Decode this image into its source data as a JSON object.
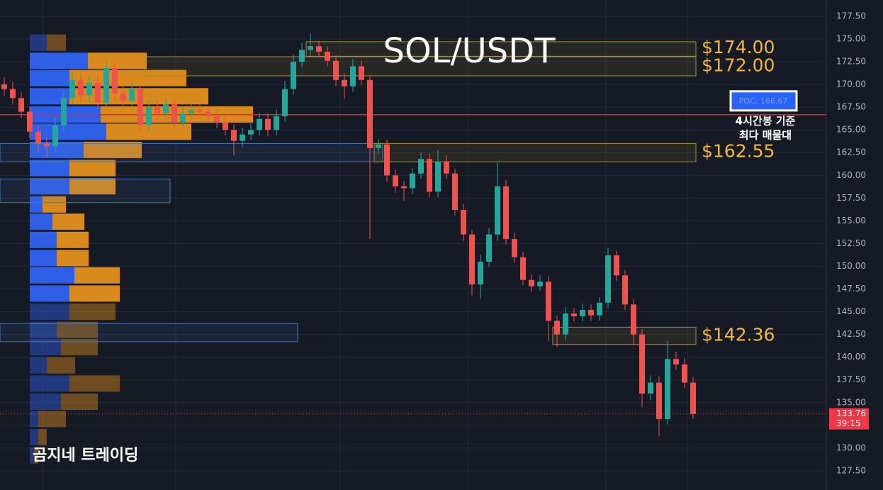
{
  "chart_data": {
    "type": "candlestick",
    "title": "SOL/USDT",
    "watermark": "곰지네 트레이딩",
    "ylim": [
      125.39,
      179.29
    ],
    "yticks": [
      {
        "value": 127.5,
        "label": "127.50"
      },
      {
        "value": 130,
        "label": "130.00"
      },
      {
        "value": 132.5,
        "label": "132.50"
      },
      {
        "value": 135,
        "label": "135.00"
      },
      {
        "value": 137.5,
        "label": "137.50"
      },
      {
        "value": 140,
        "label": "140.00"
      },
      {
        "value": 142.5,
        "label": "142.50"
      },
      {
        "value": 145,
        "label": "145.00"
      },
      {
        "value": 147.5,
        "label": "147.50"
      },
      {
        "value": 150,
        "label": "150.00"
      },
      {
        "value": 152.5,
        "label": "152.50"
      },
      {
        "value": 155,
        "label": "155.00"
      },
      {
        "value": 157.5,
        "label": "157.50"
      },
      {
        "value": 160,
        "label": "160.00"
      },
      {
        "value": 162.5,
        "label": "162.50"
      },
      {
        "value": 165,
        "label": "165.00"
      },
      {
        "value": 167.5,
        "label": "167.50"
      },
      {
        "value": 170,
        "label": "170.00"
      },
      {
        "value": 172.5,
        "label": "172.50"
      },
      {
        "value": 175,
        "label": "175.00"
      },
      {
        "value": 177.5,
        "label": "177.50"
      }
    ],
    "grid": true,
    "up_color": "#26a69a",
    "down_color": "#ef5350",
    "open": [
      170.0,
      169.5,
      168.5,
      167.0,
      164.8,
      163.5,
      163.2,
      165.5,
      168.5,
      170.5,
      168.8,
      170.2,
      168.0,
      171.8,
      169.0,
      168.2,
      169.5,
      165.5,
      167.5,
      166.8,
      167.8,
      165.8,
      166.8,
      167.2,
      167.0,
      166.5,
      165.8,
      165.0,
      163.8,
      164.5,
      165.0,
      166.2,
      165.0,
      166.5,
      169.5,
      172.5,
      173.8,
      174.2,
      173.6,
      172.6,
      170.5,
      169.8,
      172.0,
      170.5,
      163.0,
      163.4,
      160.0,
      158.8,
      158.6,
      160.2,
      161.8,
      158.2,
      161.5,
      160.2,
      156.2,
      153.5,
      148.0,
      150.5,
      153.5,
      158.8,
      153.0,
      151.0,
      148.5,
      147.8,
      148.3,
      144.0,
      142.5,
      144.8,
      144.5,
      145.2,
      144.6,
      146.0,
      151.2,
      149.0,
      145.8,
      142.5,
      136.0,
      137.2,
      133.2,
      139.8,
      139.2,
      137.2
    ],
    "high": [
      170.8,
      170.3,
      169.2,
      167.6,
      165.5,
      164.2,
      166.3,
      169.3,
      171.4,
      171.2,
      171.0,
      171.0,
      172.6,
      172.4,
      169.8,
      170.3,
      170.1,
      168.3,
      168.2,
      168.5,
      168.4,
      167.5,
      167.9,
      167.8,
      167.6,
      167.2,
      166.4,
      165.6,
      165.2,
      165.7,
      166.9,
      166.8,
      167.3,
      170.4,
      173.3,
      174.6,
      175.6,
      174.8,
      174.2,
      173.2,
      171.2,
      172.8,
      172.6,
      171.0,
      164.0,
      163.9,
      160.6,
      159.4,
      160.8,
      162.5,
      162.4,
      162.8,
      162.2,
      160.7,
      156.9,
      154.0,
      151.3,
      154.2,
      161.4,
      159.5,
      153.7,
      151.6,
      149.1,
      149.0,
      148.9,
      144.6,
      145.5,
      145.4,
      145.9,
      145.8,
      146.6,
      152.0,
      151.7,
      149.6,
      146.4,
      143.1,
      138.0,
      137.9,
      141.8,
      140.6,
      139.9,
      137.8
    ],
    "low": [
      168.8,
      167.8,
      166.3,
      164.1,
      162.6,
      162.0,
      162.6,
      164.8,
      167.8,
      168.1,
      168.0,
      167.3,
      167.4,
      168.3,
      167.5,
      167.6,
      164.8,
      164.9,
      166.1,
      166.2,
      165.1,
      165.2,
      166.2,
      166.4,
      165.9,
      165.2,
      164.4,
      162.2,
      163.1,
      163.9,
      164.4,
      164.3,
      164.4,
      165.9,
      168.9,
      171.9,
      173.2,
      173.0,
      172.0,
      169.8,
      168.4,
      169.2,
      169.9,
      153.0,
      162.3,
      159.3,
      158.1,
      157.2,
      158.0,
      159.6,
      157.6,
      157.6,
      159.6,
      155.6,
      152.8,
      146.8,
      146.4,
      149.9,
      152.8,
      152.4,
      150.4,
      147.9,
      147.2,
      147.3,
      141.8,
      141.1,
      141.9,
      143.9,
      143.9,
      144.0,
      144.0,
      145.4,
      148.4,
      145.2,
      141.3,
      134.5,
      135.3,
      131.3,
      132.6,
      138.6,
      136.6,
      133.2
    ],
    "close": [
      169.5,
      168.5,
      167.0,
      164.8,
      163.5,
      163.2,
      165.5,
      168.5,
      170.5,
      168.8,
      170.2,
      168.0,
      171.8,
      169.0,
      168.2,
      169.5,
      165.5,
      167.5,
      166.8,
      167.8,
      165.8,
      166.8,
      167.2,
      167.0,
      166.5,
      165.8,
      165.0,
      163.8,
      164.5,
      165.0,
      166.2,
      165.0,
      166.5,
      169.5,
      172.5,
      173.8,
      174.2,
      173.6,
      172.6,
      170.5,
      169.8,
      172.0,
      170.5,
      163.0,
      163.4,
      160.0,
      158.8,
      158.6,
      160.2,
      161.8,
      158.2,
      161.5,
      160.2,
      156.2,
      153.5,
      148.0,
      150.5,
      153.5,
      158.8,
      153.0,
      151.0,
      148.5,
      147.8,
      148.3,
      144.0,
      142.5,
      144.8,
      144.5,
      145.2,
      144.6,
      146.0,
      151.2,
      149.0,
      145.8,
      142.5,
      136.0,
      137.2,
      133.2,
      139.8,
      139.2,
      137.2,
      133.76
    ],
    "poc": {
      "value": 166.67,
      "label": "POC: 166.67",
      "color": "#e8262a",
      "note": [
        "4시간봉 기준",
        "최다 매물대"
      ]
    },
    "last_price": {
      "value": 133.76,
      "label": "133.76",
      "countdown": "39:15"
    },
    "zones": [
      {
        "label": "$174.00",
        "value": 174.0,
        "top": 174.7,
        "bottom": 173.1,
        "start": 36
      },
      {
        "label": "$172.00",
        "value": 172.0,
        "top": 173.05,
        "bottom": 170.95,
        "start": 17
      },
      {
        "label": "$162.55",
        "value": 162.55,
        "top": 163.5,
        "bottom": 161.5,
        "start": 44
      },
      {
        "label": "$142.36",
        "value": 142.36,
        "top": 143.3,
        "bottom": 141.4,
        "start": 65
      }
    ],
    "support_zones": [
      {
        "top": 159.6,
        "bottom": 157.0,
        "start": 0,
        "end": 20
      },
      {
        "top": 143.7,
        "bottom": 141.7,
        "start": 0,
        "end": 35
      },
      {
        "top": 163.5,
        "bottom": 161.5,
        "start": 0,
        "end": 45
      }
    ],
    "volume_profile": {
      "buy_color": "#2f5fe6",
      "sell_color": "#d98a1c",
      "value_area": [
        146.0,
        173.5
      ],
      "prices": [
        174.6,
        172.6,
        170.7,
        168.7,
        166.7,
        164.8,
        162.8,
        160.8,
        158.8,
        156.8,
        154.9,
        152.9,
        150.9,
        149.0,
        147.0,
        145.0,
        143.0,
        141.1,
        139.1,
        137.1,
        135.1,
        133.2,
        131.2,
        129.2
      ],
      "buy": [
        24,
        82,
        56,
        56,
        100,
        108,
        76,
        56,
        56,
        18,
        32,
        38,
        38,
        63,
        56,
        56,
        38,
        44,
        24,
        56,
        44,
        12,
        12,
        6
      ],
      "sell": [
        27,
        83,
        165,
        196,
        215,
        120,
        82,
        65,
        65,
        33,
        45,
        45,
        45,
        64,
        71,
        65,
        58,
        52,
        40,
        71,
        52,
        39,
        12,
        6
      ]
    }
  }
}
